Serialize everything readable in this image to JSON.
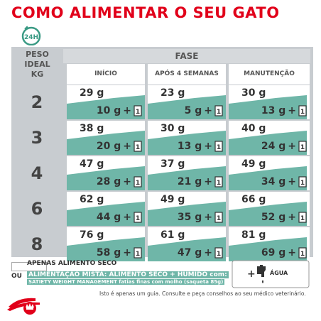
{
  "title": "COMO ALIMENTAR O SEU GATO",
  "badge": "24H",
  "header": {
    "weight_label": [
      "PESO",
      "IDEAL",
      "KG"
    ],
    "phase_label": "FASE",
    "columns": [
      "INÍCIO",
      "APÓS 4 SEMANAS",
      "MANUTENÇÃO"
    ]
  },
  "rows": [
    {
      "kg": "2",
      "cells": [
        {
          "dry": "29 g",
          "wet": "10 g"
        },
        {
          "dry": "23 g",
          "wet": "5 g"
        },
        {
          "dry": "30 g",
          "wet": "13 g"
        }
      ]
    },
    {
      "kg": "3",
      "cells": [
        {
          "dry": "38 g",
          "wet": "20 g"
        },
        {
          "dry": "30 g",
          "wet": "13 g"
        },
        {
          "dry": "40 g",
          "wet": "24 g"
        }
      ]
    },
    {
      "kg": "4",
      "cells": [
        {
          "dry": "47 g",
          "wet": "28 g"
        },
        {
          "dry": "37 g",
          "wet": "21 g"
        },
        {
          "dry": "49 g",
          "wet": "34 g"
        }
      ]
    },
    {
      "kg": "6",
      "cells": [
        {
          "dry": "62 g",
          "wet": "44 g"
        },
        {
          "dry": "49 g",
          "wet": "35 g"
        },
        {
          "dry": "66 g",
          "wet": "52 g"
        }
      ]
    },
    {
      "kg": "8",
      "cells": [
        {
          "dry": "76 g",
          "wet": "58 g"
        },
        {
          "dry": "61 g",
          "wet": "47 g"
        },
        {
          "dry": "81 g",
          "wet": "69 g"
        }
      ]
    }
  ],
  "pouch_symbol": "+",
  "pouch_count": "1",
  "legend": {
    "dry_only": "APENAS ALIMENTO SECO",
    "or": "OU",
    "mixed": "ALIMENTAÇÃO MISTA: ALIMENTO SECO + HÚMIDO com:",
    "mixed_detail": "SATIETY WEIGHT MANAGEMENT fatias finas com molho (saqueta 85g)",
    "water": "ÁGUA"
  },
  "footer": "Isto é apenas um guia. Consulte e peça conselhos ao seu médico veterinário.",
  "icons": [
    "clock-24h-icon",
    "pouch-icon",
    "water-tap-icon",
    "royal-canin-logo"
  ],
  "colors": {
    "accent": "#e1001a",
    "teal": "#6fb6a8",
    "frame": "#c8ccd0"
  }
}
